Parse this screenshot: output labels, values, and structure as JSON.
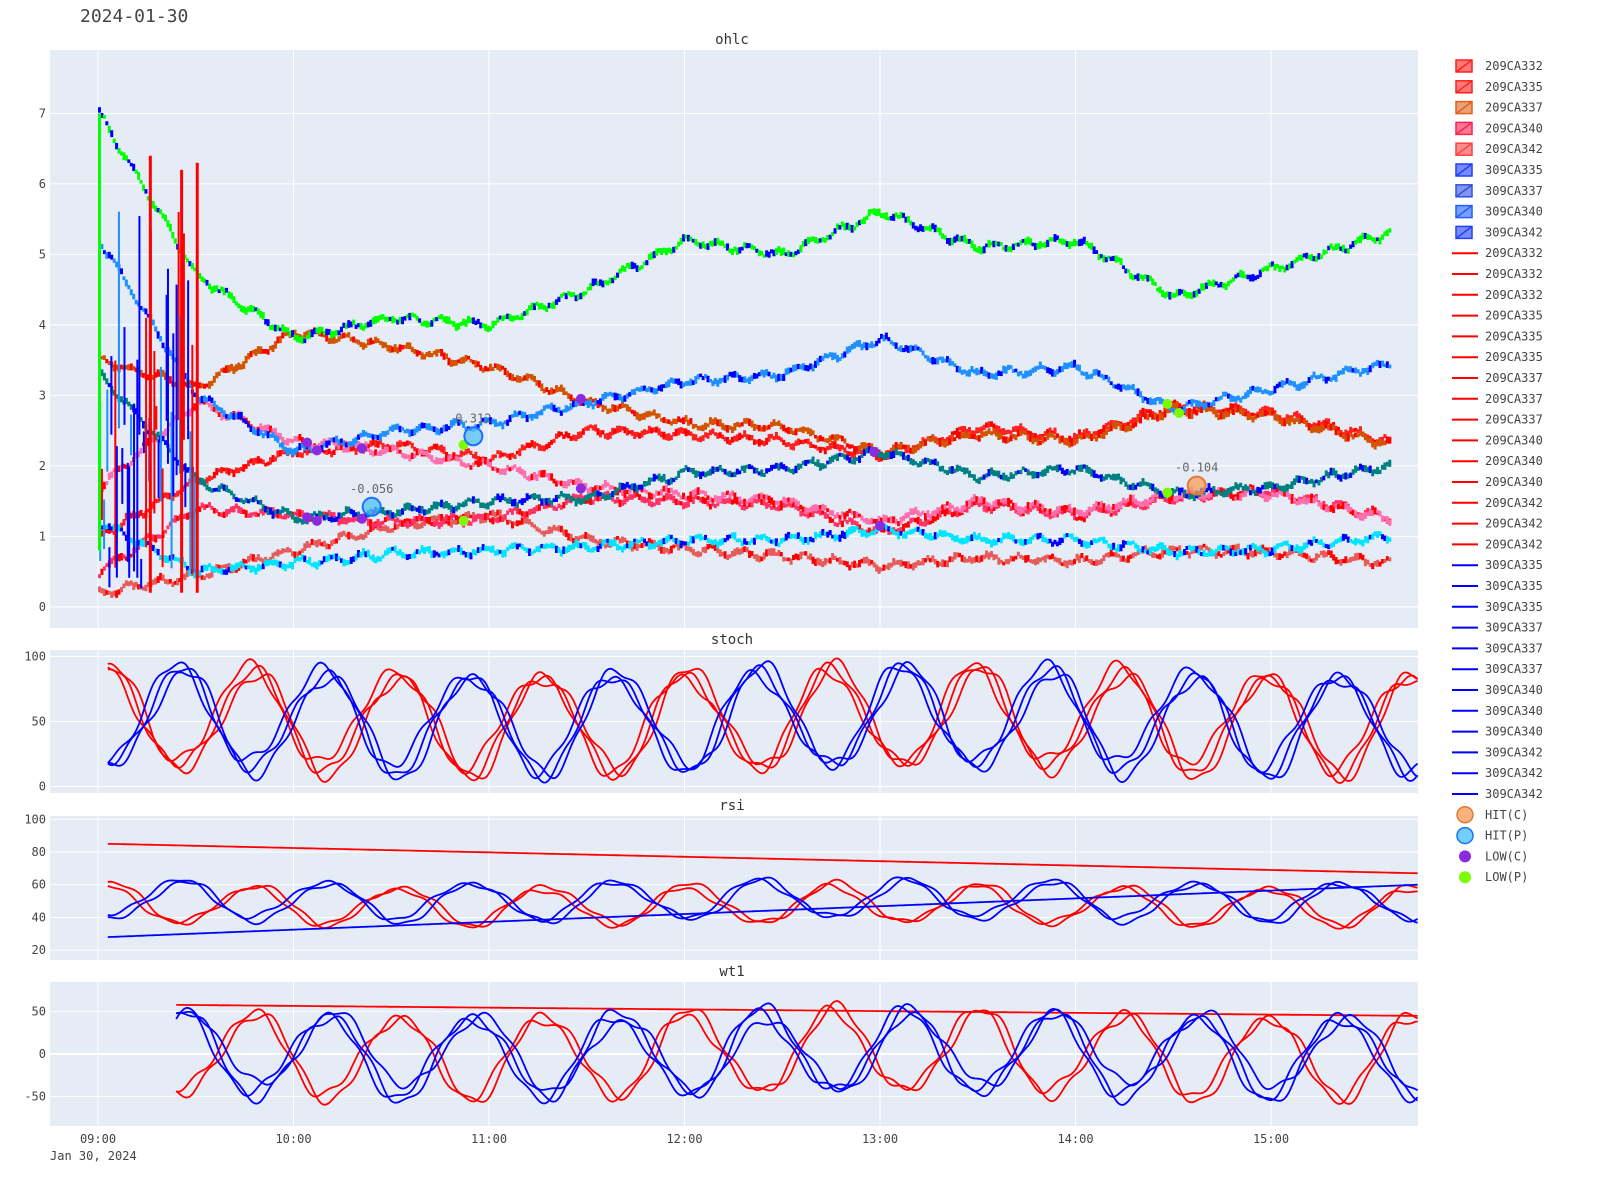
{
  "page": {
    "date_title": "2024-01-30",
    "date_sub": "Jan 30, 2024"
  },
  "x_ticks": [
    "09:00",
    "10:00",
    "11:00",
    "12:00",
    "13:00",
    "14:00",
    "15:00"
  ],
  "colors": {
    "plot_bg": "#e5ecf6",
    "grid": "#ffffff",
    "call": "#ff0000",
    "put": "#0000ff",
    "hit_c": "#f5a05a",
    "hit_p": "#4fc3f7",
    "low_c": "#8a2be2",
    "low_p": "#7cfc00"
  },
  "legend": [
    {
      "label": "209CA332",
      "kind": "candle",
      "color": "#ff2020"
    },
    {
      "label": "209CA335",
      "kind": "candle",
      "color": "#ff2020"
    },
    {
      "label": "209CA337",
      "kind": "candle",
      "color": "#e0601c"
    },
    {
      "label": "209CA340",
      "kind": "candle",
      "color": "#ff2050"
    },
    {
      "label": "209CA342",
      "kind": "candle",
      "color": "#ff4040"
    },
    {
      "label": "309CA335",
      "kind": "candle",
      "color": "#1f3fff"
    },
    {
      "label": "309CA337",
      "kind": "candle",
      "color": "#3050e0"
    },
    {
      "label": "309CA340",
      "kind": "candle",
      "color": "#1f5fff"
    },
    {
      "label": "309CA342",
      "kind": "candle",
      "color": "#2040ff"
    },
    {
      "label": "209CA332",
      "kind": "line",
      "color": "#ff0000"
    },
    {
      "label": "209CA332",
      "kind": "line",
      "color": "#ff0000"
    },
    {
      "label": "209CA332",
      "kind": "line",
      "color": "#ff0000"
    },
    {
      "label": "209CA335",
      "kind": "line",
      "color": "#ff0000"
    },
    {
      "label": "209CA335",
      "kind": "line",
      "color": "#ff0000"
    },
    {
      "label": "209CA335",
      "kind": "line",
      "color": "#ff0000"
    },
    {
      "label": "209CA337",
      "kind": "line",
      "color": "#ff0000"
    },
    {
      "label": "209CA337",
      "kind": "line",
      "color": "#ff0000"
    },
    {
      "label": "209CA337",
      "kind": "line",
      "color": "#ff0000"
    },
    {
      "label": "209CA340",
      "kind": "line",
      "color": "#ff0000"
    },
    {
      "label": "209CA340",
      "kind": "line",
      "color": "#ff0000"
    },
    {
      "label": "209CA340",
      "kind": "line",
      "color": "#ff0000"
    },
    {
      "label": "209CA342",
      "kind": "line",
      "color": "#ff0000"
    },
    {
      "label": "209CA342",
      "kind": "line",
      "color": "#ff0000"
    },
    {
      "label": "209CA342",
      "kind": "line",
      "color": "#ff0000"
    },
    {
      "label": "309CA335",
      "kind": "line",
      "color": "#0000ff"
    },
    {
      "label": "309CA335",
      "kind": "line",
      "color": "#0000ff"
    },
    {
      "label": "309CA335",
      "kind": "line",
      "color": "#0000ff"
    },
    {
      "label": "309CA337",
      "kind": "line",
      "color": "#0000ff"
    },
    {
      "label": "309CA337",
      "kind": "line",
      "color": "#0000ff"
    },
    {
      "label": "309CA337",
      "kind": "line",
      "color": "#0000ff"
    },
    {
      "label": "309CA340",
      "kind": "line",
      "color": "#0000ff"
    },
    {
      "label": "309CA340",
      "kind": "line",
      "color": "#0000ff"
    },
    {
      "label": "309CA340",
      "kind": "line",
      "color": "#0000ff"
    },
    {
      "label": "309CA342",
      "kind": "line",
      "color": "#0000ff"
    },
    {
      "label": "309CA342",
      "kind": "line",
      "color": "#0000ff"
    },
    {
      "label": "309CA342",
      "kind": "line",
      "color": "#0000ff"
    },
    {
      "label": "HIT(C)",
      "kind": "marker",
      "color": "#f5a05a"
    },
    {
      "label": "HIT(P)",
      "kind": "marker",
      "color": "#4fc3f7"
    },
    {
      "label": "LOW(C)",
      "kind": "dot",
      "color": "#8a2be2"
    },
    {
      "label": "LOW(P)",
      "kind": "dot",
      "color": "#7cfc00"
    }
  ],
  "chart_data": [
    {
      "type": "ohlc",
      "title": "ohlc",
      "x_range": [
        8.75,
        15.75
      ],
      "ylim": [
        -0.3,
        7.9
      ],
      "yticks": [
        0,
        1,
        2,
        3,
        4,
        5,
        6,
        7
      ],
      "series": [
        {
          "name": "209CA332",
          "color": "#e65c5c",
          "points": [
            [
              9.0,
              0.2
            ],
            [
              9.5,
              0.45
            ],
            [
              10.0,
              0.8
            ],
            [
              10.5,
              1.15
            ],
            [
              11.0,
              1.3
            ],
            [
              11.5,
              0.95
            ],
            [
              12.0,
              0.82
            ],
            [
              12.5,
              0.72
            ],
            [
              13.0,
              0.58
            ],
            [
              13.5,
              0.7
            ],
            [
              14.0,
              0.65
            ],
            [
              14.5,
              0.8
            ],
            [
              15.0,
              0.78
            ],
            [
              15.6,
              0.62
            ]
          ]
        },
        {
          "name": "209CA335",
          "color": "#ff3366",
          "points": [
            [
              9.0,
              0.5
            ],
            [
              9.5,
              1.4
            ],
            [
              10.0,
              1.3
            ],
            [
              10.5,
              1.2
            ],
            [
              11.0,
              1.25
            ],
            [
              11.5,
              1.55
            ],
            [
              12.0,
              1.5
            ],
            [
              12.5,
              1.45
            ],
            [
              13.0,
              1.05
            ],
            [
              13.5,
              1.45
            ],
            [
              14.0,
              1.3
            ],
            [
              14.5,
              1.55
            ],
            [
              15.0,
              1.65
            ],
            [
              15.6,
              1.25
            ]
          ]
        },
        {
          "name": "209CA337",
          "color": "#ff2020",
          "points": [
            [
              9.0,
              1.0
            ],
            [
              9.5,
              1.8
            ],
            [
              10.0,
              2.2
            ],
            [
              10.5,
              2.3
            ],
            [
              11.0,
              2.1
            ],
            [
              11.5,
              2.5
            ],
            [
              12.0,
              2.45
            ],
            [
              12.5,
              2.35
            ],
            [
              13.0,
              2.15
            ],
            [
              13.5,
              2.55
            ],
            [
              14.0,
              2.4
            ],
            [
              14.5,
              2.85
            ],
            [
              15.0,
              2.75
            ],
            [
              15.6,
              2.35
            ]
          ]
        },
        {
          "name": "209CA340",
          "color": "#ff6fae",
          "points": [
            [
              9.0,
              1.7
            ],
            [
              9.5,
              2.9
            ],
            [
              10.0,
              2.35
            ],
            [
              10.5,
              2.2
            ],
            [
              11.0,
              2.0
            ],
            [
              11.5,
              1.7
            ],
            [
              12.0,
              1.6
            ],
            [
              12.5,
              1.5
            ],
            [
              13.0,
              1.2
            ],
            [
              13.5,
              1.5
            ],
            [
              14.0,
              1.35
            ],
            [
              14.5,
              1.6
            ],
            [
              15.0,
              1.6
            ],
            [
              15.6,
              1.25
            ]
          ]
        },
        {
          "name": "209CA342",
          "color": "#d35400",
          "points": [
            [
              9.0,
              3.5
            ],
            [
              9.5,
              3.1
            ],
            [
              10.0,
              3.9
            ],
            [
              10.5,
              3.7
            ],
            [
              11.0,
              3.4
            ],
            [
              11.5,
              2.9
            ],
            [
              12.0,
              2.6
            ],
            [
              12.5,
              2.55
            ],
            [
              13.0,
              2.2
            ],
            [
              13.5,
              2.45
            ],
            [
              14.0,
              2.35
            ],
            [
              14.5,
              2.8
            ],
            [
              15.0,
              2.7
            ],
            [
              15.6,
              2.3
            ]
          ]
        },
        {
          "name": "309CA335",
          "color": "#00e5ff",
          "points": [
            [
              9.0,
              1.2
            ],
            [
              9.5,
              0.5
            ],
            [
              10.0,
              0.62
            ],
            [
              10.5,
              0.75
            ],
            [
              11.0,
              0.8
            ],
            [
              11.5,
              0.85
            ],
            [
              12.0,
              0.95
            ],
            [
              12.5,
              0.95
            ],
            [
              13.0,
              1.1
            ],
            [
              13.5,
              0.95
            ],
            [
              14.0,
              0.95
            ],
            [
              14.5,
              0.78
            ],
            [
              15.0,
              0.82
            ],
            [
              15.6,
              1.0
            ]
          ]
        },
        {
          "name": "309CA337",
          "color": "#008080",
          "points": [
            [
              9.0,
              3.3
            ],
            [
              9.5,
              1.8
            ],
            [
              10.0,
              1.25
            ],
            [
              10.5,
              1.35
            ],
            [
              11.0,
              1.5
            ],
            [
              11.5,
              1.55
            ],
            [
              12.0,
              1.9
            ],
            [
              12.5,
              1.95
            ],
            [
              13.0,
              2.2
            ],
            [
              13.5,
              1.85
            ],
            [
              14.0,
              1.95
            ],
            [
              14.5,
              1.6
            ],
            [
              15.0,
              1.7
            ],
            [
              15.6,
              2.0
            ]
          ]
        },
        {
          "name": "309CA340",
          "color": "#1e90ff",
          "points": [
            [
              9.0,
              5.2
            ],
            [
              9.5,
              3.0
            ],
            [
              10.0,
              2.2
            ],
            [
              10.5,
              2.5
            ],
            [
              11.0,
              2.6
            ],
            [
              11.5,
              2.9
            ],
            [
              12.0,
              3.2
            ],
            [
              12.5,
              3.3
            ],
            [
              13.0,
              3.8
            ],
            [
              13.5,
              3.3
            ],
            [
              14.0,
              3.4
            ],
            [
              14.5,
              2.8
            ],
            [
              15.0,
              3.1
            ],
            [
              15.6,
              3.45
            ]
          ]
        },
        {
          "name": "309CA342",
          "color": "#00ff00",
          "points": [
            [
              9.0,
              7.0
            ],
            [
              9.5,
              4.7
            ],
            [
              10.0,
              3.8
            ],
            [
              10.5,
              4.1
            ],
            [
              11.0,
              4.0
            ],
            [
              11.5,
              4.5
            ],
            [
              12.0,
              5.2
            ],
            [
              12.5,
              5.0
            ],
            [
              13.0,
              5.6
            ],
            [
              13.5,
              5.1
            ],
            [
              14.0,
              5.2
            ],
            [
              14.5,
              4.4
            ],
            [
              15.0,
              4.8
            ],
            [
              15.6,
              5.3
            ]
          ]
        }
      ],
      "annotations": [
        {
          "text": "0.312",
          "x": 10.92,
          "y": 2.42,
          "kind": "hit_p"
        },
        {
          "text": "-0.056",
          "x": 10.4,
          "y": 1.42,
          "kind": "hit_p"
        },
        {
          "text": "-0.104",
          "x": 14.62,
          "y": 1.72,
          "kind": "hit_c"
        }
      ],
      "low_c": [
        [
          10.07,
          2.33
        ],
        [
          10.12,
          2.22
        ],
        [
          10.35,
          2.25
        ],
        [
          10.07,
          1.27
        ],
        [
          10.12,
          1.22
        ],
        [
          10.35,
          1.25
        ],
        [
          11.47,
          2.95
        ],
        [
          11.47,
          1.68
        ],
        [
          12.97,
          2.2
        ],
        [
          13.0,
          1.15
        ]
      ],
      "low_p": [
        [
          10.87,
          2.3
        ],
        [
          10.87,
          1.22
        ],
        [
          14.47,
          2.88
        ],
        [
          14.53,
          2.75
        ],
        [
          14.47,
          1.62
        ]
      ]
    },
    {
      "type": "line",
      "title": "stoch",
      "x_range": [
        8.75,
        15.75
      ],
      "ylim": [
        -5,
        105
      ],
      "yticks": [
        0,
        50,
        100
      ],
      "series": [
        {
          "name": "209CA332",
          "color": "#ff0000",
          "shape": "osc",
          "phase": 0.0,
          "amp": 45,
          "mid": 50
        },
        {
          "name": "209CA335",
          "color": "#ff0000",
          "shape": "osc",
          "phase": 0.2,
          "amp": 44,
          "mid": 50
        },
        {
          "name": "209CA337",
          "color": "#ff0000",
          "shape": "osc",
          "phase": 0.4,
          "amp": 43,
          "mid": 52
        },
        {
          "name": "309CA335",
          "color": "#0000ff",
          "shape": "osc",
          "phase": 3.14,
          "amp": 45,
          "mid": 50
        },
        {
          "name": "309CA337",
          "color": "#0000ff",
          "shape": "osc",
          "phase": 3.34,
          "amp": 44,
          "mid": 50
        },
        {
          "name": "309CA340",
          "color": "#0000ff",
          "shape": "osc",
          "phase": 3.54,
          "amp": 43,
          "mid": 52
        }
      ]
    },
    {
      "type": "line",
      "title": "rsi",
      "x_range": [
        8.75,
        15.75
      ],
      "ylim": [
        14,
        102
      ],
      "yticks": [
        20,
        40,
        60,
        80,
        100
      ],
      "series": [
        {
          "name": "209CA332",
          "color": "#ff0000",
          "shape": "osc",
          "phase": 0.0,
          "amp": 14,
          "mid": 48
        },
        {
          "name": "209CA335",
          "color": "#ff0000",
          "shape": "osc",
          "phase": 0.3,
          "amp": 13,
          "mid": 47
        },
        {
          "name": "209CA337",
          "color": "#ff0000",
          "shape": "flat",
          "from": 85,
          "to": 67
        },
        {
          "name": "309CA335",
          "color": "#0000ff",
          "shape": "osc",
          "phase": 3.14,
          "amp": 14,
          "mid": 50
        },
        {
          "name": "309CA337",
          "color": "#0000ff",
          "shape": "osc",
          "phase": 3.44,
          "amp": 13,
          "mid": 51
        },
        {
          "name": "309CA340",
          "color": "#0000ff",
          "shape": "flat",
          "from": 28,
          "to": 60
        }
      ]
    },
    {
      "type": "line",
      "title": "wt1",
      "x_range": [
        8.75,
        15.75
      ],
      "ylim": [
        -85,
        85
      ],
      "yticks": [
        -50,
        0,
        50
      ],
      "series": [
        {
          "name": "209CA332",
          "color": "#ff0000",
          "shape": "osc",
          "phase": 0.0,
          "amp": 58,
          "mid": 0,
          "start": 9.4
        },
        {
          "name": "209CA335",
          "color": "#ff0000",
          "shape": "osc",
          "phase": 0.25,
          "amp": 55,
          "mid": 0,
          "start": 9.4
        },
        {
          "name": "209CA337",
          "color": "#ff0000",
          "shape": "flat",
          "from": 58,
          "to": 45,
          "start": 9.4
        },
        {
          "name": "309CA335",
          "color": "#0000ff",
          "shape": "osc",
          "phase": 3.14,
          "amp": 58,
          "mid": 0,
          "start": 9.4
        },
        {
          "name": "309CA337",
          "color": "#0000ff",
          "shape": "osc",
          "phase": 3.39,
          "amp": 55,
          "mid": 0,
          "start": 9.4
        },
        {
          "name": "309CA340",
          "color": "#0000ff",
          "shape": "osc",
          "phase": 2.9,
          "amp": 50,
          "mid": 2,
          "start": 9.4
        }
      ]
    }
  ]
}
